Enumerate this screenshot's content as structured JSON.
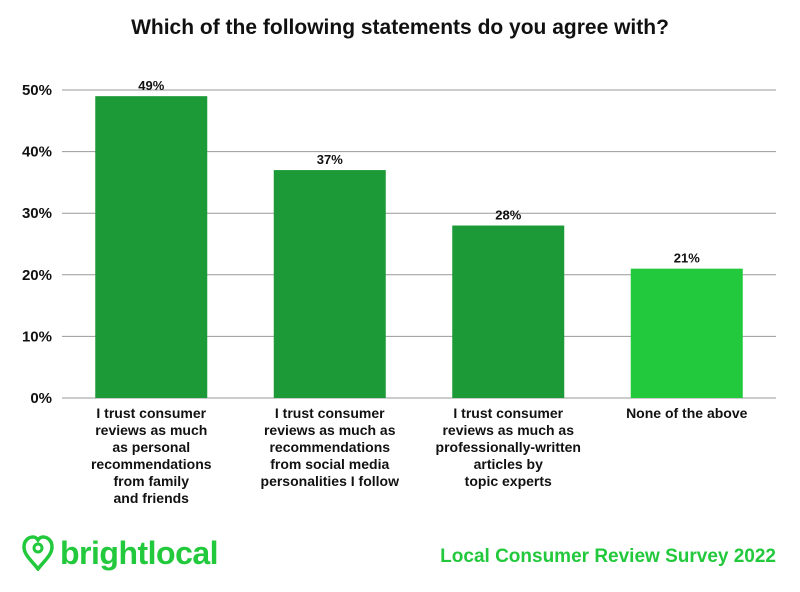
{
  "colors": {
    "bar_primary": "#1c9a37",
    "bar_highlight": "#22c93c",
    "brand": "#22c93c",
    "text": "#111111"
  },
  "brand": {
    "name": "brightlocal",
    "icon": "heart-pin-icon"
  },
  "footer": {
    "survey": "Local Consumer Review Survey 2022"
  },
  "chart_data": {
    "type": "bar",
    "title": "Which of the following statements do you agree with?",
    "xlabel": "",
    "ylabel": "",
    "ylim": [
      0,
      50
    ],
    "yticks": [
      "0%",
      "10%",
      "20%",
      "30%",
      "40%",
      "50%"
    ],
    "grid": true,
    "legend": "none",
    "categories": [
      [
        "I trust consumer",
        "reviews as much",
        "as personal",
        "recommendations",
        "from family",
        "and friends"
      ],
      [
        "I trust consumer",
        "reviews as much as",
        "recommendations",
        "from social media",
        "personalities I follow"
      ],
      [
        "I trust consumer",
        "reviews as much as",
        "professionally-written",
        "articles by",
        "topic experts"
      ],
      [
        "None of the above"
      ]
    ],
    "values": [
      49,
      37,
      28,
      21
    ],
    "value_labels": [
      "49%",
      "37%",
      "28%",
      "21%"
    ]
  }
}
